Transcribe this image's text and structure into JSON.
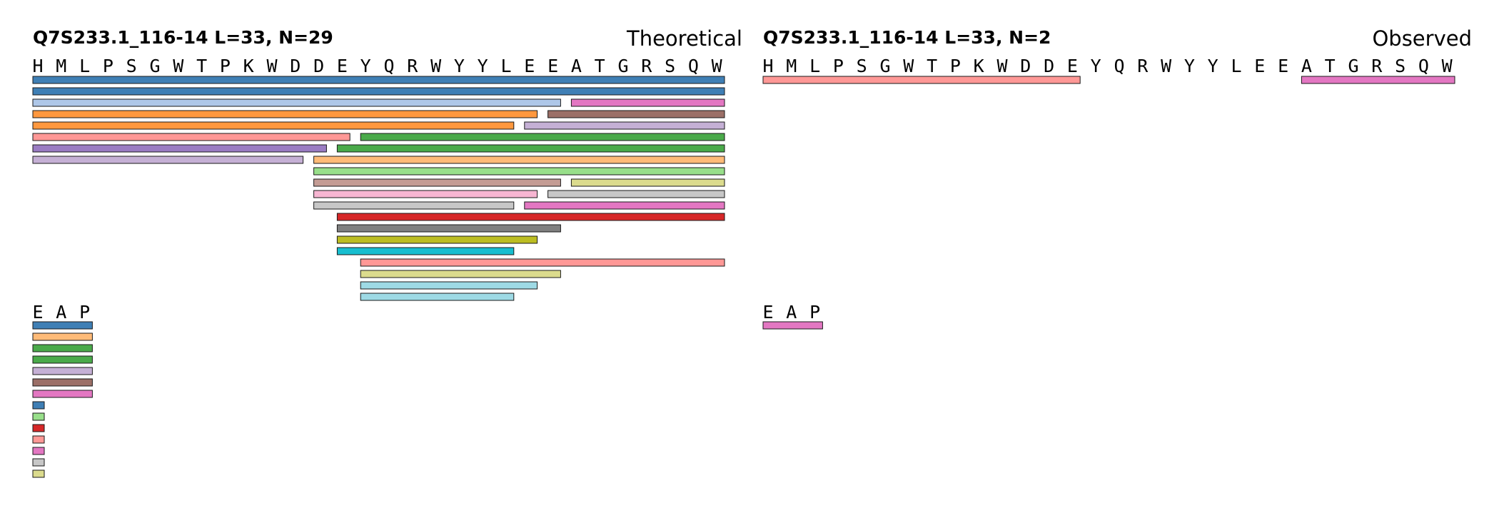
{
  "panels": [
    {
      "id": "theoretical",
      "title": "Q7S233.1_116-14  L=33, N=29",
      "label": "Theoretical",
      "sequence": [
        "H",
        "M",
        "L",
        "P",
        "S",
        "G",
        "W",
        "T",
        "P",
        "K",
        "W",
        "D",
        "D",
        "E",
        "Y",
        "Q",
        "R",
        "W",
        "Y",
        "Y",
        "L",
        "E",
        "E",
        "A",
        "T",
        "G",
        "R",
        "S",
        "Q",
        "W"
      ],
      "fragments": [
        {
          "row": 0,
          "start": 0,
          "end": 30,
          "color": "#3f7fb5"
        },
        {
          "row": 1,
          "start": 0,
          "end": 30,
          "color": "#3f7fb5"
        },
        {
          "row": 2,
          "start": 0,
          "end": 23,
          "color": "#aec7e8"
        },
        {
          "row": 2,
          "start": 23,
          "end": 30,
          "color": "#e377c2"
        },
        {
          "row": 3,
          "start": 0,
          "end": 22,
          "color": "#ff983e"
        },
        {
          "row": 3,
          "start": 22,
          "end": 30,
          "color": "#9b6f67"
        },
        {
          "row": 4,
          "start": 0,
          "end": 21,
          "color": "#ff983e"
        },
        {
          "row": 4,
          "start": 21,
          "end": 30,
          "color": "#c5b0d5"
        },
        {
          "row": 5,
          "start": 0,
          "end": 14,
          "color": "#ff9896"
        },
        {
          "row": 5,
          "start": 14,
          "end": 30,
          "color": "#4aaa4a"
        },
        {
          "row": 6,
          "start": 0,
          "end": 13,
          "color": "#9a7cc3"
        },
        {
          "row": 6,
          "start": 13,
          "end": 30,
          "color": "#4aaa4a"
        },
        {
          "row": 7,
          "start": 0,
          "end": 12,
          "color": "#c5b0d5"
        },
        {
          "row": 7,
          "start": 12,
          "end": 30,
          "color": "#ffbb78"
        },
        {
          "row": 8,
          "start": 12,
          "end": 30,
          "color": "#98df8a"
        },
        {
          "row": 9,
          "start": 12,
          "end": 23,
          "color": "#c49c94"
        },
        {
          "row": 9,
          "start": 23,
          "end": 30,
          "color": "#dbdb8d"
        },
        {
          "row": 10,
          "start": 12,
          "end": 22,
          "color": "#f7b6d2"
        },
        {
          "row": 10,
          "start": 22,
          "end": 30,
          "color": "#c7c7c7"
        },
        {
          "row": 11,
          "start": 12,
          "end": 21,
          "color": "#c7c7c7"
        },
        {
          "row": 11,
          "start": 21,
          "end": 30,
          "color": "#e377c2"
        },
        {
          "row": 12,
          "start": 13,
          "end": 30,
          "color": "#d62728"
        },
        {
          "row": 13,
          "start": 13,
          "end": 23,
          "color": "#7f7f7f"
        },
        {
          "row": 14,
          "start": 13,
          "end": 22,
          "color": "#bcbd22"
        },
        {
          "row": 15,
          "start": 13,
          "end": 21,
          "color": "#17becf"
        },
        {
          "row": 16,
          "start": 14,
          "end": 30,
          "color": "#ff9896"
        },
        {
          "row": 17,
          "start": 14,
          "end": 23,
          "color": "#dbdb8d"
        },
        {
          "row": 18,
          "start": 14,
          "end": 22,
          "color": "#9edae5"
        },
        {
          "row": 19,
          "start": 14,
          "end": 21,
          "color": "#9edae5"
        }
      ],
      "extra_sequence": [
        "E",
        "A",
        "P"
      ],
      "extra_fragments": [
        {
          "row": 0,
          "start": 0,
          "end": 3,
          "color": "#3f7fb5"
        },
        {
          "row": 1,
          "start": 0,
          "end": 3,
          "color": "#ffbb78"
        },
        {
          "row": 2,
          "start": 0,
          "end": 3,
          "color": "#4aaa4a"
        },
        {
          "row": 3,
          "start": 0,
          "end": 3,
          "color": "#4aaa4a"
        },
        {
          "row": 4,
          "start": 0,
          "end": 3,
          "color": "#c5b0d5"
        },
        {
          "row": 5,
          "start": 0,
          "end": 3,
          "color": "#9b6f67"
        },
        {
          "row": 6,
          "start": 0,
          "end": 3,
          "color": "#e377c2"
        },
        {
          "row": 7,
          "start": 0,
          "end": 0.5,
          "color": "#3f7fb5"
        },
        {
          "row": 8,
          "start": 0,
          "end": 0.5,
          "color": "#98df8a"
        },
        {
          "row": 9,
          "start": 0,
          "end": 0.5,
          "color": "#d62728"
        },
        {
          "row": 10,
          "start": 0,
          "end": 0.5,
          "color": "#ff9896"
        },
        {
          "row": 11,
          "start": 0,
          "end": 0.5,
          "color": "#e377c2"
        },
        {
          "row": 12,
          "start": 0,
          "end": 0.5,
          "color": "#c7c7c7"
        },
        {
          "row": 13,
          "start": 0,
          "end": 0.5,
          "color": "#dbdb8d"
        }
      ]
    },
    {
      "id": "observed",
      "title": "Q7S233.1_116-14  L=33, N=2",
      "label": "Observed",
      "sequence": [
        "H",
        "M",
        "L",
        "P",
        "S",
        "G",
        "W",
        "T",
        "P",
        "K",
        "W",
        "D",
        "D",
        "E",
        "Y",
        "Q",
        "R",
        "W",
        "Y",
        "Y",
        "L",
        "E",
        "E",
        "A",
        "T",
        "G",
        "R",
        "S",
        "Q",
        "W"
      ],
      "fragments": [
        {
          "row": 0,
          "start": 0,
          "end": 14,
          "color": "#ff9896"
        },
        {
          "row": 0,
          "start": 23,
          "end": 30,
          "color": "#e377c2"
        }
      ],
      "extra_sequence": [
        "E",
        "A",
        "P"
      ],
      "extra_fragments": [
        {
          "row": 0,
          "start": 0,
          "end": 3,
          "color": "#e377c2"
        }
      ]
    }
  ]
}
